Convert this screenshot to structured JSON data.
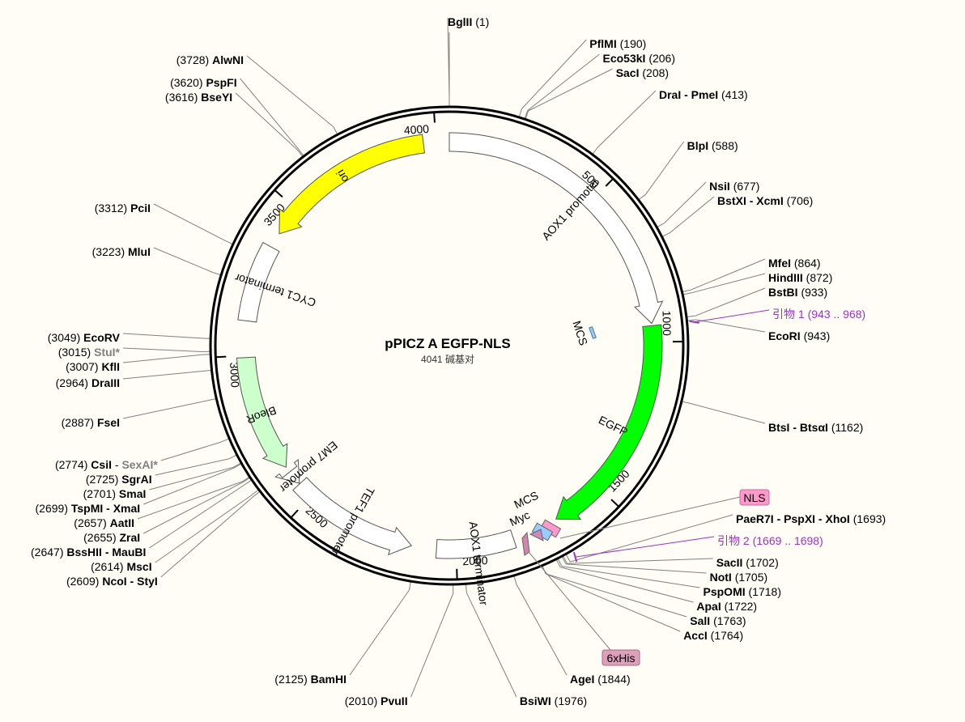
{
  "plasmid": {
    "name": "pPICZ A EGFP-NLS",
    "length": 4041,
    "length_label": "4041 碱基对"
  },
  "ticks": [
    500,
    1000,
    1500,
    2000,
    2500,
    3000,
    3500,
    4000
  ],
  "features": [
    {
      "name": "AOX1 promoter",
      "start": 1,
      "end": 941,
      "dir": "cw",
      "color": "#ffffff"
    },
    {
      "name": "EGFP",
      "start": 948,
      "end": 1667,
      "dir": "cw",
      "color": "#00ff00"
    },
    {
      "name": "AOX1 terminator",
      "start": 1815,
      "end": 2062,
      "dir": "none",
      "color": "#ffffff"
    },
    {
      "name": "TEF1 promoter",
      "start": 2142,
      "end": 2552,
      "dir": "ccw",
      "color": "#ffffff"
    },
    {
      "name": "EM7 promoter",
      "start": 2554,
      "end": 2601,
      "dir": "ccw",
      "color": "#ffffff"
    },
    {
      "name": "BleoR",
      "start": 2620,
      "end": 2994,
      "dir": "ccw",
      "color": "#ccffcc"
    },
    {
      "name": "CYC1 terminator",
      "start": 3110,
      "end": 3357,
      "dir": "none",
      "color": "#ffffff"
    },
    {
      "name": "ori",
      "start": 3406,
      "end": 3960,
      "dir": "ccw",
      "color": "#ffff00"
    }
  ],
  "inner_labels": {
    "mcs_top": "MCS",
    "mcs_bottom": "MCS",
    "myc": "Myc"
  },
  "sites": [
    {
      "name": "BglII",
      "pos": "(1)",
      "angle": 0,
      "side": "right",
      "ly": 27
    },
    {
      "name": "PflMI",
      "pos": "(190)",
      "angle": 17,
      "side": "right",
      "ly": 54
    },
    {
      "name": "Eco53kI",
      "pos": "(206)",
      "angle": 18.4,
      "side": "right",
      "ly": 72
    },
    {
      "name": "SacI",
      "pos": "(208)",
      "angle": 18.6,
      "side": "right",
      "ly": 90
    },
    {
      "name": "DraI - PmeI",
      "pos": "(413)",
      "angle": 36.8,
      "side": "right",
      "ly": 117
    },
    {
      "name": "BlpI",
      "pos": "(588)",
      "angle": 52.4,
      "side": "right",
      "ly": 180
    },
    {
      "name": "NsiI",
      "pos": "(677)",
      "angle": 60.3,
      "side": "right",
      "ly": 230
    },
    {
      "name": "BstXI - XcmI",
      "pos": "(706)",
      "angle": 62.9,
      "side": "right",
      "ly": 248
    },
    {
      "name": "MfeI",
      "pos": "(864)",
      "angle": 77,
      "side": "right",
      "ly": 325
    },
    {
      "name": "HindIII",
      "pos": "(872)",
      "angle": 77.7,
      "side": "right",
      "ly": 343
    },
    {
      "name": "BstBI",
      "pos": "(933)",
      "angle": 83.1,
      "side": "right",
      "ly": 361
    },
    {
      "name": "EcoRI",
      "pos": "(943)",
      "angle": 84,
      "side": "right",
      "ly": 415
    },
    {
      "name": "BtsI - BtsαI",
      "pos": "(1162)",
      "angle": 103.5,
      "side": "right",
      "ly": 528
    },
    {
      "name": "PaeR7I - PspXI - XhoI",
      "pos": "(1693)",
      "angle": 150.8,
      "side": "right",
      "ly": 641
    },
    {
      "name": "SacII",
      "pos": "(1702)",
      "angle": 151.6,
      "side": "right",
      "ly": 695
    },
    {
      "name": "NotI",
      "pos": "(1705)",
      "angle": 151.9,
      "side": "right",
      "ly": 713
    },
    {
      "name": "PspOMI",
      "pos": "(1718)",
      "angle": 153,
      "side": "right",
      "ly": 731
    },
    {
      "name": "ApaI",
      "pos": "(1722)",
      "angle": 153.4,
      "side": "right",
      "ly": 749
    },
    {
      "name": "SalI",
      "pos": "(1763)",
      "angle": 157.1,
      "side": "right",
      "ly": 767
    },
    {
      "name": "AccI",
      "pos": "(1764)",
      "angle": 157.1,
      "side": "right",
      "ly": 785
    },
    {
      "name": "AgeI",
      "pos": "(1844)",
      "angle": 164.3,
      "side": "right",
      "ly": 839
    },
    {
      "name": "BsiWI",
      "pos": "(1976)",
      "angle": 176,
      "side": "right",
      "ly": 866
    },
    {
      "name": "PvuII",
      "pos": "(2010)",
      "angle": 179.1,
      "side": "left",
      "ly": 866
    },
    {
      "name": "BamHI",
      "pos": "(2125)",
      "angle": 189.3,
      "side": "left",
      "ly": 839
    },
    {
      "name": "NcoI - StyI",
      "pos": "(2609)",
      "angle": 232.4,
      "side": "left",
      "ly": 718
    },
    {
      "name": "MscI",
      "pos": "(2614)",
      "angle": 232.9,
      "side": "left",
      "ly": 700
    },
    {
      "name": "BssHII - MauBI",
      "pos": "(2647)",
      "angle": 235.8,
      "side": "left",
      "ly": 682
    },
    {
      "name": "ZraI",
      "pos": "(2655)",
      "angle": 236.5,
      "side": "left",
      "ly": 664
    },
    {
      "name": "AatII",
      "pos": "(2657)",
      "angle": 236.7,
      "side": "left",
      "ly": 646
    },
    {
      "name": "TspMI - XmaI",
      "pos": "(2699)",
      "angle": 240.4,
      "side": "left",
      "ly": 628
    },
    {
      "name": "SmaI",
      "pos": "(2701)",
      "angle": 240.6,
      "side": "left",
      "ly": 610
    },
    {
      "name": "SgrAI",
      "pos": "(2725)",
      "angle": 242.8,
      "side": "left",
      "ly": 592
    },
    {
      "name": "CsiI - SexAI*",
      "pos": "(2774)",
      "angle": 247.1,
      "side": "left",
      "ly": 574,
      "gray_after": "SexAI*"
    },
    {
      "name": "FseI",
      "pos": "(2887)",
      "angle": 257.2,
      "side": "left",
      "ly": 522
    },
    {
      "name": "DraIII",
      "pos": "(2964)",
      "angle": 264.1,
      "side": "left",
      "ly": 473
    },
    {
      "name": "KflI",
      "pos": "(3007)",
      "angle": 267.9,
      "side": "left",
      "ly": 453
    },
    {
      "name": "StuI*",
      "pos": "(3015)",
      "angle": 268.6,
      "side": "left",
      "ly": 435,
      "gray": true
    },
    {
      "name": "EcoRV",
      "pos": "(3049)",
      "angle": 271.7,
      "side": "left",
      "ly": 417
    },
    {
      "name": "MluI",
      "pos": "(3223)",
      "angle": 287.2,
      "side": "left",
      "ly": 311
    },
    {
      "name": "PciI",
      "pos": "(3312)",
      "angle": 295.1,
      "side": "left",
      "ly": 257
    },
    {
      "name": "BseYI",
      "pos": "(3616)",
      "angle": 322.2,
      "side": "left",
      "ly": 120
    },
    {
      "name": "PspFI",
      "pos": "(3620)",
      "angle": 322.5,
      "side": "left",
      "ly": 102
    },
    {
      "name": "AlwNI",
      "pos": "(3728)",
      "angle": 332.1,
      "side": "left",
      "ly": 74
    }
  ],
  "primers": [
    {
      "label": "引物 1",
      "range": "(943 .. 968)",
      "angle": 84.5,
      "ly": 388
    },
    {
      "label": "引物 2",
      "range": "(1669 .. 1698)",
      "angle": 149.2,
      "ly": 668
    }
  ],
  "tags": [
    {
      "label": "NLS",
      "color": "#ff99cc"
    },
    {
      "label": "6xHis",
      "color": "#dda0bb"
    }
  ],
  "colors": {
    "backbone": "#000000",
    "leader": "#808080",
    "primer": "#9933cc",
    "enzyme_gray": "#808080"
  }
}
